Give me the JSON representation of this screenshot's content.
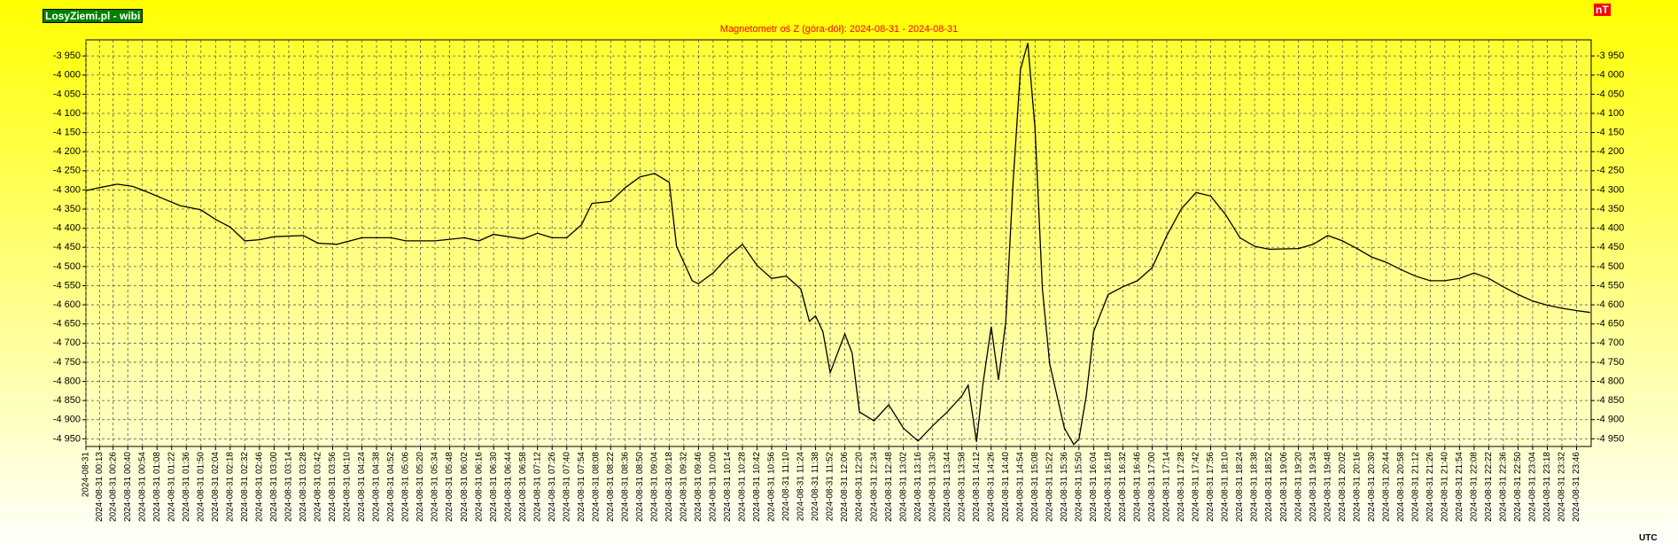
{
  "brand": "LosyZiemi.pl - wibi",
  "unit": "nT",
  "timezone": "UTC",
  "chart_data": {
    "type": "line",
    "title": "Magnetometr oś Z (góra-dół): 2024-08-31 - 2024-08-31",
    "color": "#000000",
    "grid": true,
    "xlim": [
      "00:00",
      "24:00"
    ],
    "ylim": [
      -4970,
      -3908
    ],
    "yticks": [
      {
        "value": -3950,
        "label": "-3 950"
      },
      {
        "value": -4000,
        "label": "-4 000"
      },
      {
        "value": -4050,
        "label": "-4 050"
      },
      {
        "value": -4100,
        "label": "-4 100"
      },
      {
        "value": -4150,
        "label": "-4 150"
      },
      {
        "value": -4200,
        "label": "-4 200"
      },
      {
        "value": -4250,
        "label": "-4 250"
      },
      {
        "value": -4300,
        "label": "-4 300"
      },
      {
        "value": -4350,
        "label": "-4 350"
      },
      {
        "value": -4400,
        "label": "-4 400"
      },
      {
        "value": -4450,
        "label": "-4 450"
      },
      {
        "value": -4500,
        "label": "-4 500"
      },
      {
        "value": -4550,
        "label": "-4 550"
      },
      {
        "value": -4600,
        "label": "-4 600"
      },
      {
        "value": -4650,
        "label": "-4 650"
      },
      {
        "value": -4700,
        "label": "-4 700"
      },
      {
        "value": -4750,
        "label": "-4 750"
      },
      {
        "value": -4800,
        "label": "-4 800"
      },
      {
        "value": -4850,
        "label": "-4 850"
      },
      {
        "value": -4900,
        "label": "-4 900"
      },
      {
        "value": -4950,
        "label": "-4 950"
      }
    ],
    "xticks": [
      {
        "value": "00:00",
        "label": "2024-08-31"
      },
      {
        "value": "00:13",
        "label": "2024-08-31 00:13"
      },
      {
        "value": "00:26",
        "label": "2024-08-31 00:26"
      },
      {
        "value": "00:40",
        "label": "2024-08-31 00:40"
      },
      {
        "value": "00:54",
        "label": "2024-08-31 00:54"
      },
      {
        "value": "01:08",
        "label": "2024-08-31 01:08"
      },
      {
        "value": "01:22",
        "label": "2024-08-31 01:22"
      },
      {
        "value": "01:36",
        "label": "2024-08-31 01:36"
      },
      {
        "value": "01:50",
        "label": "2024-08-31 01:50"
      },
      {
        "value": "02:04",
        "label": "2024-08-31 02:04"
      },
      {
        "value": "02:18",
        "label": "2024-08-31 02:18"
      },
      {
        "value": "02:32",
        "label": "2024-08-31 02:32"
      },
      {
        "value": "02:46",
        "label": "2024-08-31 02:46"
      },
      {
        "value": "03:00",
        "label": "2024-08-31 03:00"
      },
      {
        "value": "03:14",
        "label": "2024-08-31 03:14"
      },
      {
        "value": "03:28",
        "label": "2024-08-31 03:28"
      },
      {
        "value": "03:42",
        "label": "2024-08-31 03:42"
      },
      {
        "value": "03:56",
        "label": "2024-08-31 03:56"
      },
      {
        "value": "04:10",
        "label": "2024-08-31 04:10"
      },
      {
        "value": "04:24",
        "label": "2024-08-31 04:24"
      },
      {
        "value": "04:38",
        "label": "2024-08-31 04:38"
      },
      {
        "value": "04:52",
        "label": "2024-08-31 04:52"
      },
      {
        "value": "05:06",
        "label": "2024-08-31 05:06"
      },
      {
        "value": "05:20",
        "label": "2024-08-31 05:20"
      },
      {
        "value": "05:34",
        "label": "2024-08-31 05:34"
      },
      {
        "value": "05:48",
        "label": "2024-08-31 05:48"
      },
      {
        "value": "06:02",
        "label": "2024-08-31 06:02"
      },
      {
        "value": "06:16",
        "label": "2024-08-31 06:16"
      },
      {
        "value": "06:30",
        "label": "2024-08-31 06:30"
      },
      {
        "value": "06:44",
        "label": "2024-08-31 06:44"
      },
      {
        "value": "06:58",
        "label": "2024-08-31 06:58"
      },
      {
        "value": "07:12",
        "label": "2024-08-31 07:12"
      },
      {
        "value": "07:26",
        "label": "2024-08-31 07:26"
      },
      {
        "value": "07:40",
        "label": "2024-08-31 07:40"
      },
      {
        "value": "07:54",
        "label": "2024-08-31 07:54"
      },
      {
        "value": "08:08",
        "label": "2024-08-31 08:08"
      },
      {
        "value": "08:22",
        "label": "2024-08-31 08:22"
      },
      {
        "value": "08:36",
        "label": "2024-08-31 08:36"
      },
      {
        "value": "08:50",
        "label": "2024-08-31 08:50"
      },
      {
        "value": "09:04",
        "label": "2024-08-31 09:04"
      },
      {
        "value": "09:18",
        "label": "2024-08-31 09:18"
      },
      {
        "value": "09:32",
        "label": "2024-08-31 09:32"
      },
      {
        "value": "09:46",
        "label": "2024-08-31 09:46"
      },
      {
        "value": "10:00",
        "label": "2024-08-31 10:00"
      },
      {
        "value": "10:14",
        "label": "2024-08-31 10:14"
      },
      {
        "value": "10:28",
        "label": "2024-08-31 10:28"
      },
      {
        "value": "10:42",
        "label": "2024-08-31 10:42"
      },
      {
        "value": "10:56",
        "label": "2024-08-31 10:56"
      },
      {
        "value": "11:10",
        "label": "2024-08-31 11:10"
      },
      {
        "value": "11:24",
        "label": "2024-08-31 11:24"
      },
      {
        "value": "11:38",
        "label": "2024-08-31 11:38"
      },
      {
        "value": "11:52",
        "label": "2024-08-31 11:52"
      },
      {
        "value": "12:06",
        "label": "2024-08-31 12:06"
      },
      {
        "value": "12:20",
        "label": "2024-08-31 12:20"
      },
      {
        "value": "12:34",
        "label": "2024-08-31 12:34"
      },
      {
        "value": "12:48",
        "label": "2024-08-31 12:48"
      },
      {
        "value": "13:02",
        "label": "2024-08-31 13:02"
      },
      {
        "value": "13:16",
        "label": "2024-08-31 13:16"
      },
      {
        "value": "13:30",
        "label": "2024-08-31 13:30"
      },
      {
        "value": "13:44",
        "label": "2024-08-31 13:44"
      },
      {
        "value": "13:58",
        "label": "2024-08-31 13:58"
      },
      {
        "value": "14:12",
        "label": "2024-08-31 14:12"
      },
      {
        "value": "14:26",
        "label": "2024-08-31 14:26"
      },
      {
        "value": "14:40",
        "label": "2024-08-31 14:40"
      },
      {
        "value": "14:54",
        "label": "2024-08-31 14:54"
      },
      {
        "value": "15:08",
        "label": "2024-08-31 15:08"
      },
      {
        "value": "15:22",
        "label": "2024-08-31 15:22"
      },
      {
        "value": "15:36",
        "label": "2024-08-31 15:36"
      },
      {
        "value": "15:50",
        "label": "2024-08-31 15:50"
      },
      {
        "value": "16:04",
        "label": "2024-08-31 16:04"
      },
      {
        "value": "16:18",
        "label": "2024-08-31 16:18"
      },
      {
        "value": "16:32",
        "label": "2024-08-31 16:32"
      },
      {
        "value": "16:46",
        "label": "2024-08-31 16:46"
      },
      {
        "value": "17:00",
        "label": "2024-08-31 17:00"
      },
      {
        "value": "17:14",
        "label": "2024-08-31 17:14"
      },
      {
        "value": "17:28",
        "label": "2024-08-31 17:28"
      },
      {
        "value": "17:42",
        "label": "2024-08-31 17:42"
      },
      {
        "value": "17:56",
        "label": "2024-08-31 17:56"
      },
      {
        "value": "18:10",
        "label": "2024-08-31 18:10"
      },
      {
        "value": "18:24",
        "label": "2024-08-31 18:24"
      },
      {
        "value": "18:38",
        "label": "2024-08-31 18:38"
      },
      {
        "value": "18:52",
        "label": "2024-08-31 18:52"
      },
      {
        "value": "19:06",
        "label": "2024-08-31 19:06"
      },
      {
        "value": "19:20",
        "label": "2024-08-31 19:20"
      },
      {
        "value": "19:34",
        "label": "2024-08-31 19:34"
      },
      {
        "value": "19:48",
        "label": "2024-08-31 19:48"
      },
      {
        "value": "20:02",
        "label": "2024-08-31 20:02"
      },
      {
        "value": "20:16",
        "label": "2024-08-31 20:16"
      },
      {
        "value": "20:30",
        "label": "2024-08-31 20:30"
      },
      {
        "value": "20:44",
        "label": "2024-08-31 20:44"
      },
      {
        "value": "20:58",
        "label": "2024-08-31 20:58"
      },
      {
        "value": "21:12",
        "label": "2024-08-31 21:12"
      },
      {
        "value": "21:26",
        "label": "2024-08-31 21:26"
      },
      {
        "value": "21:40",
        "label": "2024-08-31 21:40"
      },
      {
        "value": "21:54",
        "label": "2024-08-31 21:54"
      },
      {
        "value": "22:08",
        "label": "2024-08-31 22:08"
      },
      {
        "value": "22:22",
        "label": "2024-08-31 22:22"
      },
      {
        "value": "22:36",
        "label": "2024-08-31 22:36"
      },
      {
        "value": "22:50",
        "label": "2024-08-31 22:50"
      },
      {
        "value": "23:04",
        "label": "2024-08-31 23:04"
      },
      {
        "value": "23:18",
        "label": "2024-08-31 23:18"
      },
      {
        "value": "23:32",
        "label": "2024-08-31 23:32"
      },
      {
        "value": "23:46",
        "label": "2024-08-31 23:46"
      }
    ],
    "x": [
      "00:00",
      "00:13",
      "00:30",
      "00:45",
      "01:00",
      "01:15",
      "01:30",
      "01:50",
      "02:04",
      "02:18",
      "02:32",
      "02:46",
      "03:00",
      "03:28",
      "03:42",
      "04:00",
      "04:24",
      "04:52",
      "05:06",
      "05:34",
      "06:02",
      "06:16",
      "06:30",
      "06:58",
      "07:12",
      "07:26",
      "07:40",
      "07:54",
      "08:04",
      "08:22",
      "08:36",
      "08:50",
      "09:04",
      "09:18",
      "09:25",
      "09:40",
      "09:46",
      "10:00",
      "10:14",
      "10:28",
      "10:42",
      "10:56",
      "11:10",
      "11:24",
      "11:32",
      "11:38",
      "11:45",
      "11:52",
      "12:06",
      "12:13",
      "12:20",
      "12:34",
      "12:48",
      "13:02",
      "13:16",
      "13:30",
      "13:44",
      "13:58",
      "14:04",
      "14:12",
      "14:18",
      "14:26",
      "14:33",
      "14:40",
      "14:47",
      "14:54",
      "15:01",
      "15:08",
      "15:15",
      "15:22",
      "15:36",
      "15:45",
      "15:50",
      "15:57",
      "16:04",
      "16:18",
      "16:32",
      "16:46",
      "17:00",
      "17:14",
      "17:28",
      "17:42",
      "17:56",
      "18:10",
      "18:24",
      "18:38",
      "18:52",
      "19:20",
      "19:34",
      "19:48",
      "20:02",
      "20:16",
      "20:30",
      "20:44",
      "20:58",
      "21:12",
      "21:26",
      "21:40",
      "21:54",
      "22:08",
      "22:22",
      "22:36",
      "22:50",
      "23:04",
      "23:18",
      "23:32",
      "23:46",
      "23:59"
    ],
    "values": [
      -4302,
      -4294,
      -4285,
      -4291,
      -4307,
      -4324,
      -4341,
      -4352,
      -4377,
      -4397,
      -4433,
      -4430,
      -4422,
      -4419,
      -4439,
      -4442,
      -4425,
      -4425,
      -4433,
      -4433,
      -4425,
      -4433,
      -4416,
      -4428,
      -4413,
      -4425,
      -4425,
      -4391,
      -4335,
      -4330,
      -4294,
      -4266,
      -4257,
      -4280,
      -4447,
      -4537,
      -4545,
      -4517,
      -4475,
      -4442,
      -4497,
      -4531,
      -4525,
      -4559,
      -4643,
      -4629,
      -4670,
      -4777,
      -4676,
      -4726,
      -4880,
      -4903,
      -4861,
      -4922,
      -4956,
      -4916,
      -4880,
      -4838,
      -4810,
      -4958,
      -4810,
      -4657,
      -4796,
      -4643,
      -4280,
      -3986,
      -3916,
      -4140,
      -4559,
      -4754,
      -4922,
      -4965,
      -4950,
      -4838,
      -4670,
      -4573,
      -4553,
      -4537,
      -4503,
      -4419,
      -4349,
      -4307,
      -4316,
      -4363,
      -4425,
      -4447,
      -4455,
      -4453,
      -4442,
      -4419,
      -4433,
      -4453,
      -4475,
      -4489,
      -4508,
      -4525,
      -4537,
      -4537,
      -4531,
      -4517,
      -4531,
      -4553,
      -4573,
      -4590,
      -4601,
      -4609,
      -4615,
      -4620
    ]
  }
}
